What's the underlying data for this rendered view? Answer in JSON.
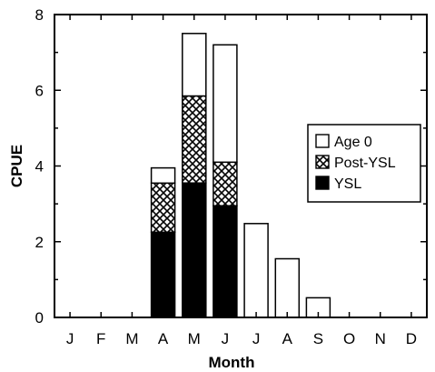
{
  "chart_data": {
    "type": "bar",
    "stacked": true,
    "xlabel": "Month",
    "ylabel": "CPUE",
    "categories": [
      "J",
      "F",
      "M",
      "A",
      "M",
      "J",
      "J",
      "A",
      "S",
      "O",
      "N",
      "D"
    ],
    "ylim": [
      0,
      8
    ],
    "yticks": [
      "0",
      "2",
      "4",
      "6",
      "8"
    ],
    "grid": false,
    "legend_position": "right",
    "series": [
      {
        "name": "YSL",
        "fill": "solid-black",
        "values": [
          0,
          0,
          0,
          2.25,
          3.55,
          2.95,
          0,
          0,
          0,
          0,
          0,
          0
        ]
      },
      {
        "name": "Post-YSL",
        "fill": "crosshatch",
        "values": [
          0,
          0,
          0,
          1.3,
          2.3,
          1.15,
          0,
          0,
          0,
          0,
          0,
          0
        ]
      },
      {
        "name": "Age 0",
        "fill": "white",
        "values": [
          0,
          0,
          0,
          0.4,
          1.65,
          3.1,
          2.48,
          1.55,
          0.52,
          0,
          0,
          0
        ]
      }
    ],
    "legend": [
      "Age 0",
      "Post-YSL",
      "YSL"
    ]
  }
}
